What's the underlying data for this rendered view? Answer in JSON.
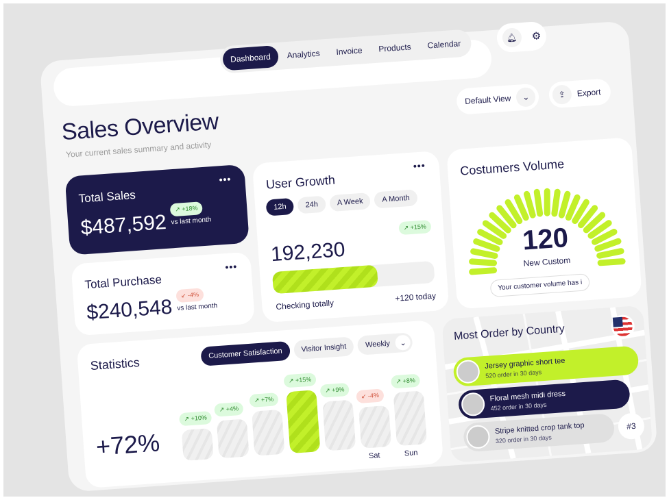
{
  "nav": {
    "items": [
      "Dashboard",
      "Analytics",
      "Invoice",
      "Products",
      "Calendar"
    ],
    "active": "Dashboard"
  },
  "header": {
    "default_view": "Default View",
    "export": "Export"
  },
  "page": {
    "title": "Sales Overview",
    "subtitle": "Your current sales summary and activity"
  },
  "total_sales": {
    "label": "Total Sales",
    "value": "$487,592",
    "change": "↗ +18%",
    "note": "vs last month"
  },
  "total_purchase": {
    "label": "Total Purchase",
    "value": "$240,548",
    "change": "↙ -4%",
    "note": "vs last month"
  },
  "user_growth": {
    "title": "User Growth",
    "tabs": [
      "12h",
      "24h",
      "A Week",
      "A Month"
    ],
    "active": "12h",
    "value": "192,230",
    "change": "↗ +15%",
    "progress": 0.65,
    "caption": "Checking totally",
    "today": "+120 today"
  },
  "customers": {
    "title": "Costumers Volume",
    "value": "120",
    "label": "New Custom",
    "note": "Your customer volume has i"
  },
  "statistics": {
    "title": "Statistics",
    "tabs": [
      "Customer Satisfaction",
      "Visitor Insight"
    ],
    "active": "Customer Satisfaction",
    "period": "Weekly",
    "big": "+72%",
    "bars": [
      {
        "badge": "↗ +10%",
        "day": ""
      },
      {
        "badge": "↗ +4%",
        "day": ""
      },
      {
        "badge": "↗ +7%",
        "day": ""
      },
      {
        "badge": "↗ +15%",
        "day": "",
        "highlight": true
      },
      {
        "badge": "↗ +9%",
        "day": ""
      },
      {
        "badge": "↙ -4%",
        "day": "Sat",
        "negative": true
      },
      {
        "badge": "↗ +8%",
        "day": "Sun"
      }
    ]
  },
  "map": {
    "title": "Most Order by Country",
    "rank": "#3",
    "products": [
      {
        "name": "Jersey graphic short tee",
        "orders": "520 order in 30 days"
      },
      {
        "name": "Floral mesh midi dress",
        "orders": "452 order in 30 days"
      },
      {
        "name": "Stripe knitted crop tank top",
        "orders": "320 order in 30 days"
      }
    ]
  },
  "colors": {
    "navy": "#1c1a4a",
    "lime": "#c2f02a",
    "bg": "#f5f5f5"
  }
}
